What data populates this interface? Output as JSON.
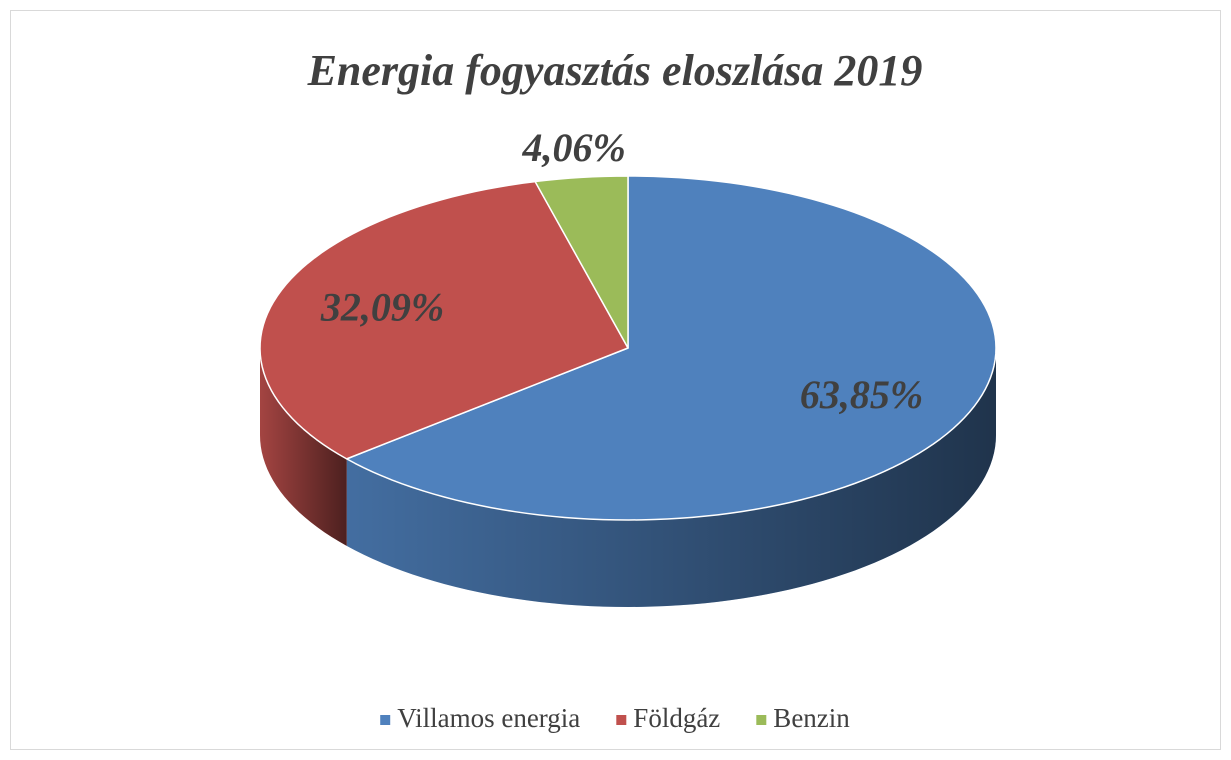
{
  "chart_data": {
    "type": "pie3d",
    "title": "Energia fogyasztás eloszlása 2019",
    "categories": [
      "Villamos energia",
      "Földgáz",
      "Benzin"
    ],
    "values": [
      63.85,
      32.09,
      4.06
    ],
    "value_labels": [
      "63,85%",
      "32,09%",
      "4,06%"
    ],
    "colors": [
      "#4f81bd",
      "#c0504d",
      "#9bbb59"
    ],
    "legend": "bottom"
  }
}
